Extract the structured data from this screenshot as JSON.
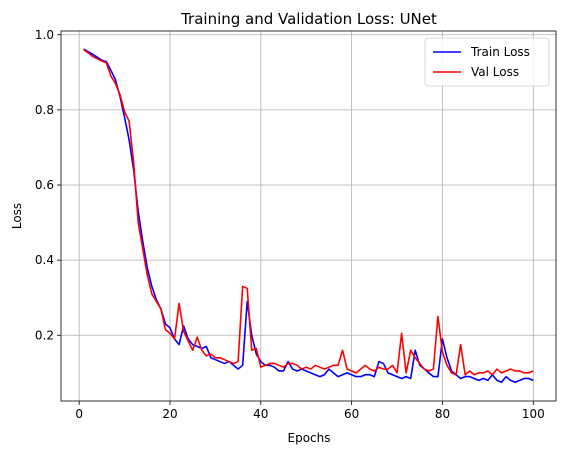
{
  "chart_data": {
    "type": "line",
    "title": "Training and Validation Loss: UNet",
    "xlabel": "Epochs",
    "ylabel": "Loss",
    "xlim": [
      -4,
      105
    ],
    "ylim": [
      0.025,
      1.01
    ],
    "xticks": [
      0,
      20,
      40,
      60,
      80,
      100
    ],
    "yticks": [
      0.2,
      0.4,
      0.6,
      0.8,
      1.0
    ],
    "xtick_labels": [
      "0",
      "20",
      "40",
      "60",
      "80",
      "100"
    ],
    "ytick_labels": [
      "0.2",
      "0.4",
      "0.6",
      "0.8",
      "1.0"
    ],
    "grid": true,
    "legend_position": "top-right",
    "x": [
      1,
      2,
      3,
      4,
      5,
      6,
      7,
      8,
      9,
      10,
      11,
      12,
      13,
      14,
      15,
      16,
      17,
      18,
      19,
      20,
      21,
      22,
      23,
      24,
      25,
      26,
      27,
      28,
      29,
      30,
      31,
      32,
      33,
      34,
      35,
      36,
      37,
      38,
      39,
      40,
      41,
      42,
      43,
      44,
      45,
      46,
      47,
      48,
      49,
      50,
      51,
      52,
      53,
      54,
      55,
      56,
      57,
      58,
      59,
      60,
      61,
      62,
      63,
      64,
      65,
      66,
      67,
      68,
      69,
      70,
      71,
      72,
      73,
      74,
      75,
      76,
      77,
      78,
      79,
      80,
      81,
      82,
      83,
      84,
      85,
      86,
      87,
      88,
      89,
      90,
      91,
      92,
      93,
      94,
      95,
      96,
      97,
      98,
      99,
      100
    ],
    "series": [
      {
        "name": "Train Loss",
        "color": "#0000ff",
        "values": [
          0.962,
          0.955,
          0.948,
          0.94,
          0.932,
          0.928,
          0.905,
          0.88,
          0.835,
          0.78,
          0.72,
          0.64,
          0.53,
          0.45,
          0.38,
          0.33,
          0.295,
          0.27,
          0.23,
          0.22,
          0.19,
          0.175,
          0.225,
          0.19,
          0.175,
          0.17,
          0.165,
          0.17,
          0.14,
          0.135,
          0.13,
          0.125,
          0.13,
          0.12,
          0.11,
          0.12,
          0.29,
          0.2,
          0.15,
          0.13,
          0.12,
          0.12,
          0.115,
          0.105,
          0.105,
          0.13,
          0.11,
          0.105,
          0.11,
          0.105,
          0.1,
          0.095,
          0.09,
          0.095,
          0.11,
          0.1,
          0.09,
          0.095,
          0.1,
          0.095,
          0.09,
          0.09,
          0.095,
          0.095,
          0.09,
          0.13,
          0.125,
          0.1,
          0.095,
          0.09,
          0.085,
          0.09,
          0.085,
          0.16,
          0.12,
          0.11,
          0.1,
          0.09,
          0.09,
          0.19,
          0.14,
          0.105,
          0.095,
          0.085,
          0.09,
          0.09,
          0.085,
          0.08,
          0.085,
          0.08,
          0.095,
          0.08,
          0.075,
          0.09,
          0.08,
          0.075,
          0.08,
          0.085,
          0.085,
          0.08
        ]
      },
      {
        "name": "Val Loss",
        "color": "#ff0000",
        "values": [
          0.96,
          0.952,
          0.942,
          0.936,
          0.93,
          0.925,
          0.89,
          0.87,
          0.84,
          0.795,
          0.77,
          0.66,
          0.5,
          0.43,
          0.36,
          0.31,
          0.29,
          0.27,
          0.215,
          0.205,
          0.19,
          0.285,
          0.21,
          0.185,
          0.16,
          0.195,
          0.16,
          0.145,
          0.15,
          0.14,
          0.14,
          0.135,
          0.13,
          0.125,
          0.13,
          0.33,
          0.325,
          0.16,
          0.165,
          0.115,
          0.12,
          0.125,
          0.125,
          0.12,
          0.115,
          0.125,
          0.125,
          0.12,
          0.11,
          0.115,
          0.11,
          0.12,
          0.115,
          0.11,
          0.115,
          0.12,
          0.12,
          0.16,
          0.11,
          0.105,
          0.1,
          0.11,
          0.12,
          0.11,
          0.105,
          0.115,
          0.11,
          0.11,
          0.12,
          0.1,
          0.205,
          0.1,
          0.16,
          0.14,
          0.125,
          0.11,
          0.105,
          0.11,
          0.25,
          0.155,
          0.12,
          0.1,
          0.095,
          0.175,
          0.095,
          0.105,
          0.095,
          0.1,
          0.1,
          0.105,
          0.095,
          0.11,
          0.1,
          0.105,
          0.11,
          0.105,
          0.105,
          0.1,
          0.1,
          0.105
        ]
      }
    ]
  }
}
